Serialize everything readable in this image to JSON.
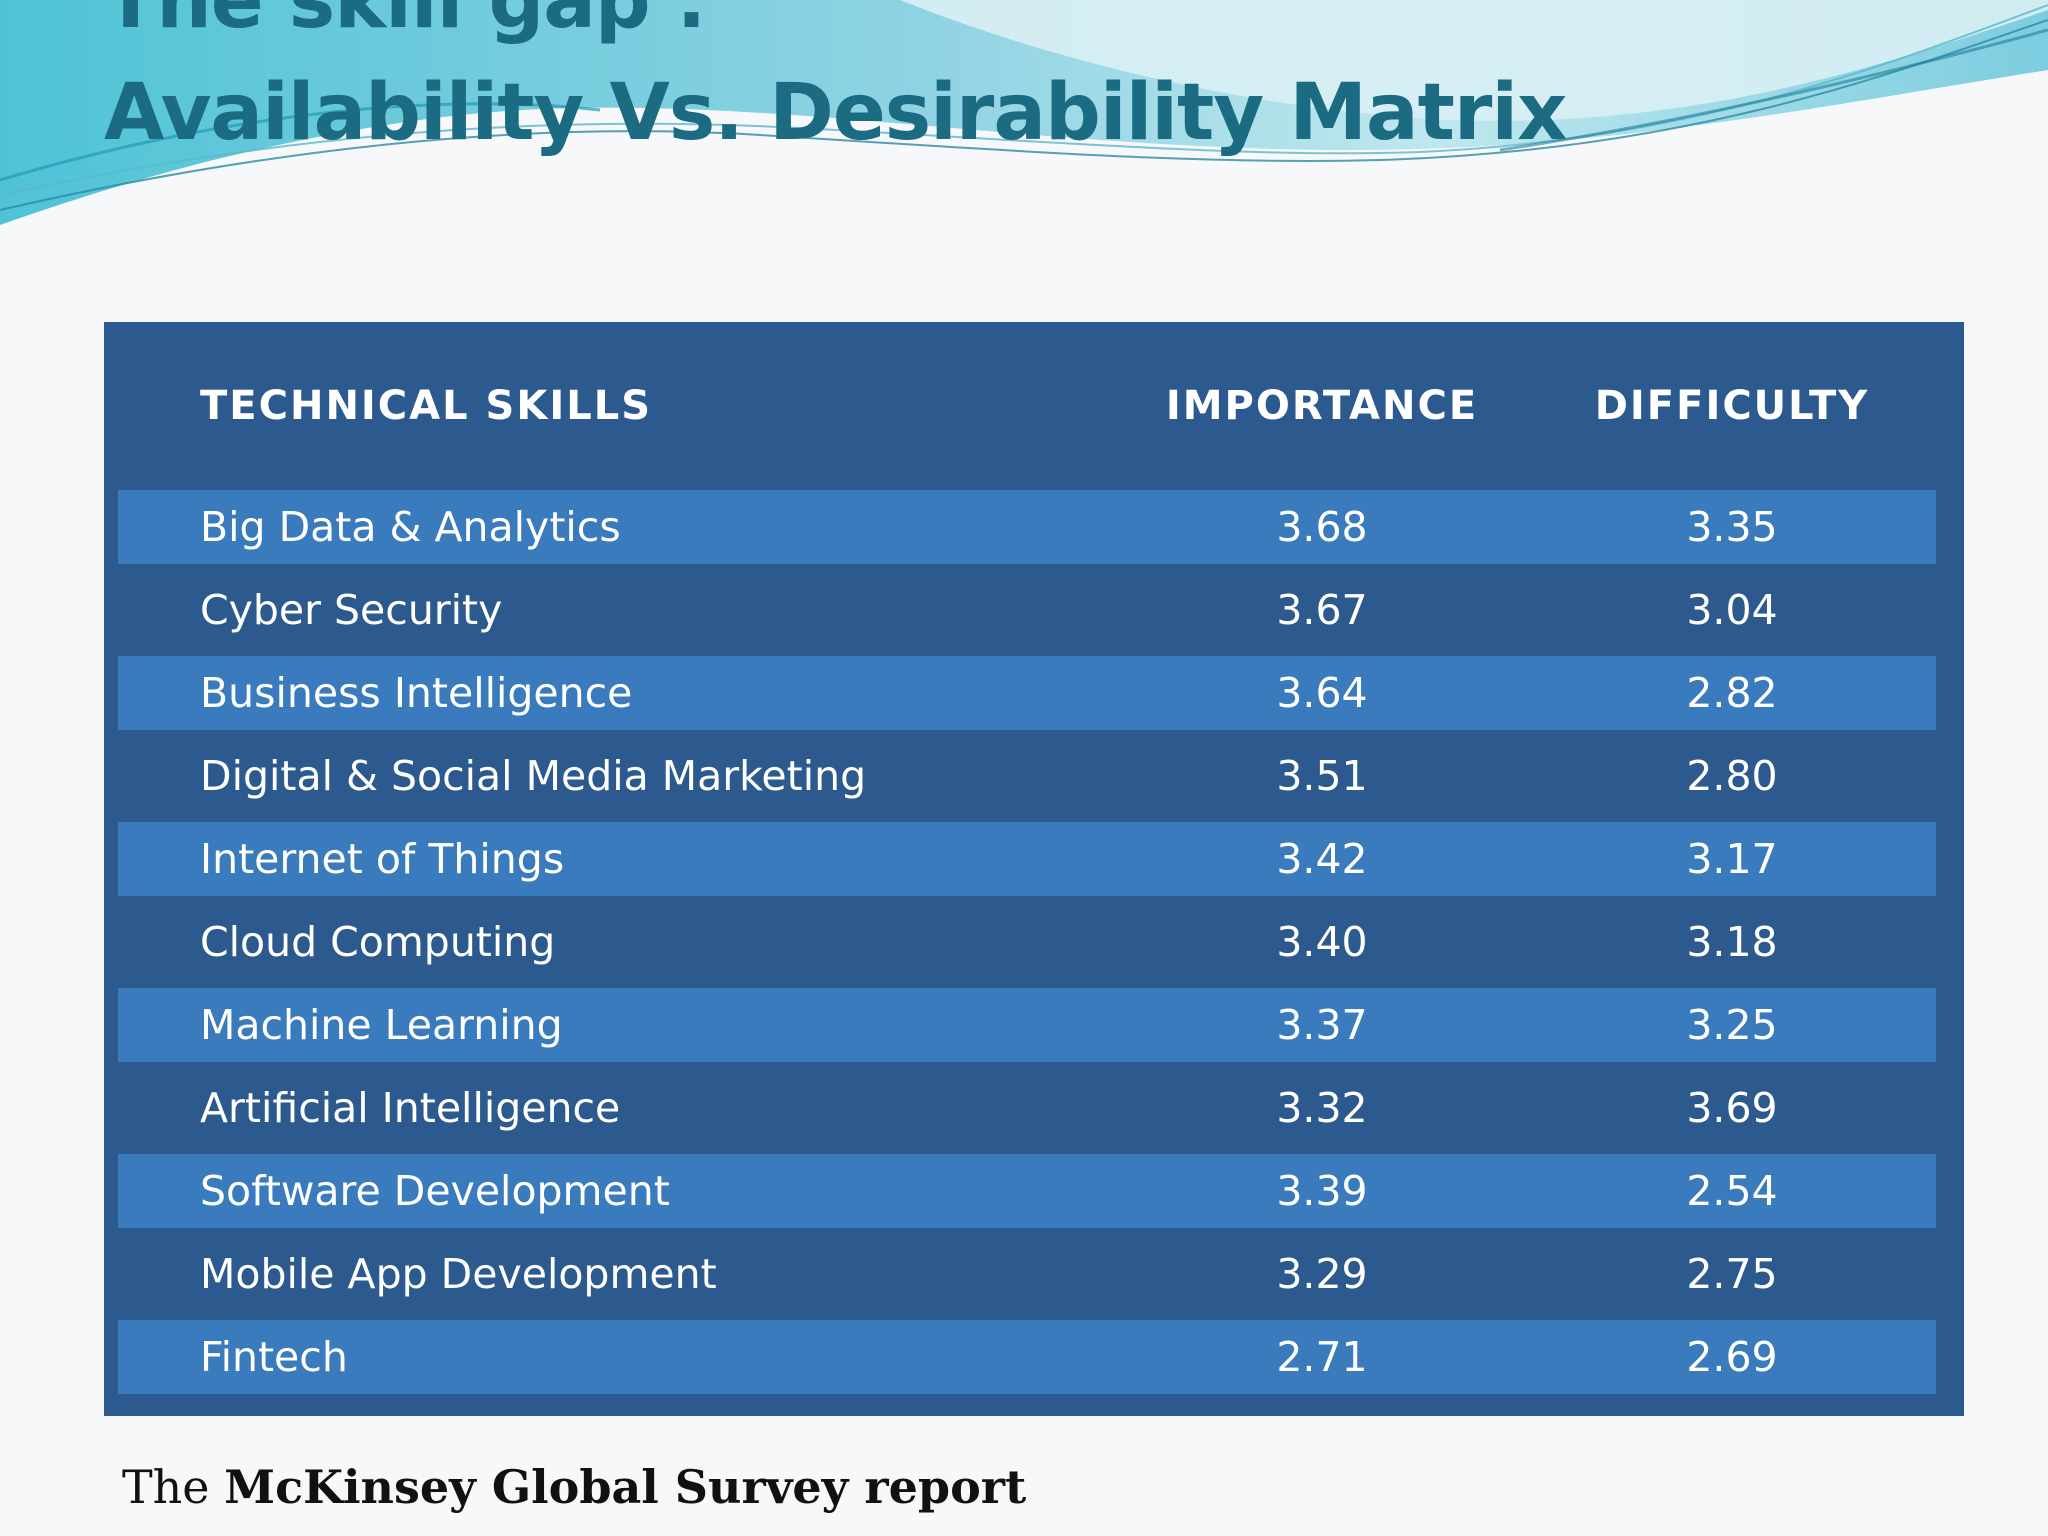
{
  "slide": {
    "title_line_1": "The skill gap :",
    "title_line_2": "Availability Vs. Desirability Matrix"
  },
  "colors": {
    "title": "#1b6b83",
    "table_dark": "#2d5a8e",
    "table_light": "#3a7bbd",
    "wave_teal": "#5cc4d6"
  },
  "table": {
    "headers": {
      "skill": "TECHNICAL SKILLS",
      "importance": "IMPORTANCE",
      "difficulty": "DIFFICULTY"
    },
    "rows": [
      {
        "skill": "Big Data & Analytics",
        "importance": "3.68",
        "difficulty": "3.35"
      },
      {
        "skill": "Cyber Security",
        "importance": "3.67",
        "difficulty": "3.04"
      },
      {
        "skill": "Business Intelligence",
        "importance": "3.64",
        "difficulty": "2.82"
      },
      {
        "skill": "Digital & Social Media Marketing",
        "importance": "3.51",
        "difficulty": "2.80"
      },
      {
        "skill": "Internet of Things",
        "importance": "3.42",
        "difficulty": "3.17"
      },
      {
        "skill": "Cloud Computing",
        "importance": "3.40",
        "difficulty": "3.18"
      },
      {
        "skill": "Machine Learning",
        "importance": "3.37",
        "difficulty": "3.25"
      },
      {
        "skill": "Artificial Intelligence",
        "importance": "3.32",
        "difficulty": "3.69"
      },
      {
        "skill": "Software Development",
        "importance": "3.39",
        "difficulty": "2.54"
      },
      {
        "skill": "Mobile App Development",
        "importance": "3.29",
        "difficulty": "2.75"
      },
      {
        "skill": "Fintech",
        "importance": "2.71",
        "difficulty": "2.69"
      }
    ]
  },
  "source": {
    "prefix": "The ",
    "name": "McKinsey Global Survey report"
  }
}
